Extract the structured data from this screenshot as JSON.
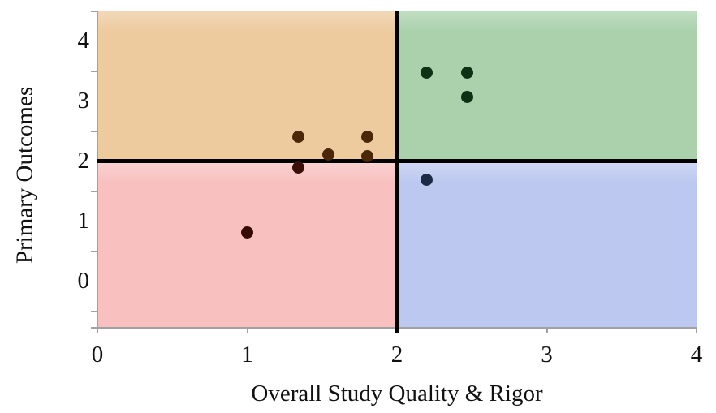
{
  "chart_data": {
    "type": "scatter",
    "title": "",
    "xlabel": "Overall Study Quality & Rigor",
    "ylabel": "Primary Outcomes",
    "xlim": [
      0,
      4
    ],
    "ylim": [
      -0.76,
      4.51
    ],
    "grid": false,
    "legend": "none",
    "x_ticks": [
      {
        "value": 0,
        "label": "0"
      },
      {
        "value": 1,
        "label": "1"
      },
      {
        "value": 2,
        "label": "2"
      },
      {
        "value": 3,
        "label": "3"
      },
      {
        "value": 4,
        "label": "4"
      }
    ],
    "y_tick_labels": [
      {
        "value": 0,
        "label": "0"
      },
      {
        "value": 1,
        "label": "1"
      },
      {
        "value": 2,
        "label": "2"
      },
      {
        "value": 3,
        "label": "3"
      },
      {
        "value": 4,
        "label": "4"
      }
    ],
    "y_tick_marks": [
      -0.5,
      0.5,
      1.5,
      2.5,
      3.5,
      4.5
    ],
    "quadrant_split": {
      "x": 2,
      "y": 2
    },
    "quadrants": [
      {
        "name": "upper-left",
        "color": "#eeca9f"
      },
      {
        "name": "upper-right",
        "color": "#aad1ac"
      },
      {
        "name": "lower-left",
        "color": "#f8c1c0"
      },
      {
        "name": "lower-right",
        "color": "#bcc8ef"
      }
    ],
    "divider_color": "#000000",
    "axis_color": "#a1a1a1",
    "points": [
      {
        "x": 1.34,
        "y": 2.41,
        "color": "#4b2708"
      },
      {
        "x": 1.54,
        "y": 2.11,
        "color": "#4b2708"
      },
      {
        "x": 1.8,
        "y": 2.41,
        "color": "#4b2708"
      },
      {
        "x": 1.8,
        "y": 2.09,
        "color": "#4b2708"
      },
      {
        "x": 1.34,
        "y": 1.89,
        "color": "#3a0f08"
      },
      {
        "x": 1.0,
        "y": 0.82,
        "color": "#360b06"
      },
      {
        "x": 2.2,
        "y": 3.48,
        "color": "#0e3015"
      },
      {
        "x": 2.47,
        "y": 3.48,
        "color": "#0e3015"
      },
      {
        "x": 2.47,
        "y": 3.07,
        "color": "#0e3015"
      },
      {
        "x": 2.2,
        "y": 1.69,
        "color": "#1d2a45"
      }
    ]
  }
}
